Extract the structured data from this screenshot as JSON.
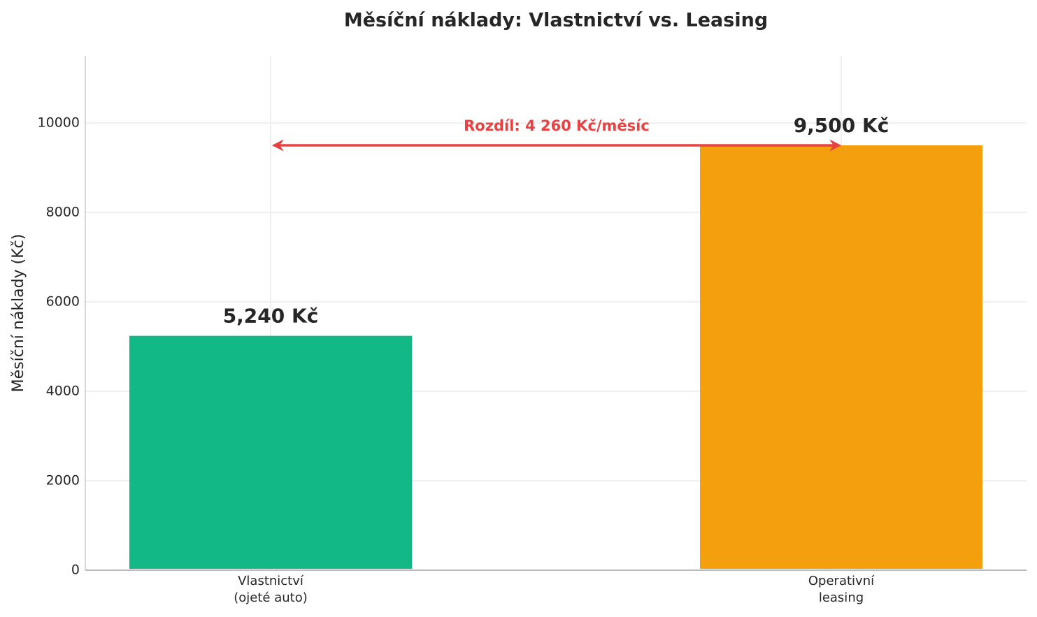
{
  "chart_data": {
    "type": "bar",
    "title": "Měsíční náklady: Vlastnictví vs. Leasing",
    "ylabel": "Měsíční náklady (Kč)",
    "categories": [
      "Vlastnictví\n(ojeté auto)",
      "Operativní\nleasing"
    ],
    "values": [
      5240,
      9500
    ],
    "value_labels": [
      "5,240 Kč",
      "9,500 Kč"
    ],
    "colors": [
      "#12b886",
      "#f39f0e"
    ],
    "annotation": "Rozdíl: 4 260 Kč/měsíc",
    "annotation_color": "#e84142",
    "ylim": [
      0,
      11500
    ],
    "yticks": [
      0,
      2000,
      4000,
      6000,
      8000,
      10000
    ],
    "grid": true
  }
}
